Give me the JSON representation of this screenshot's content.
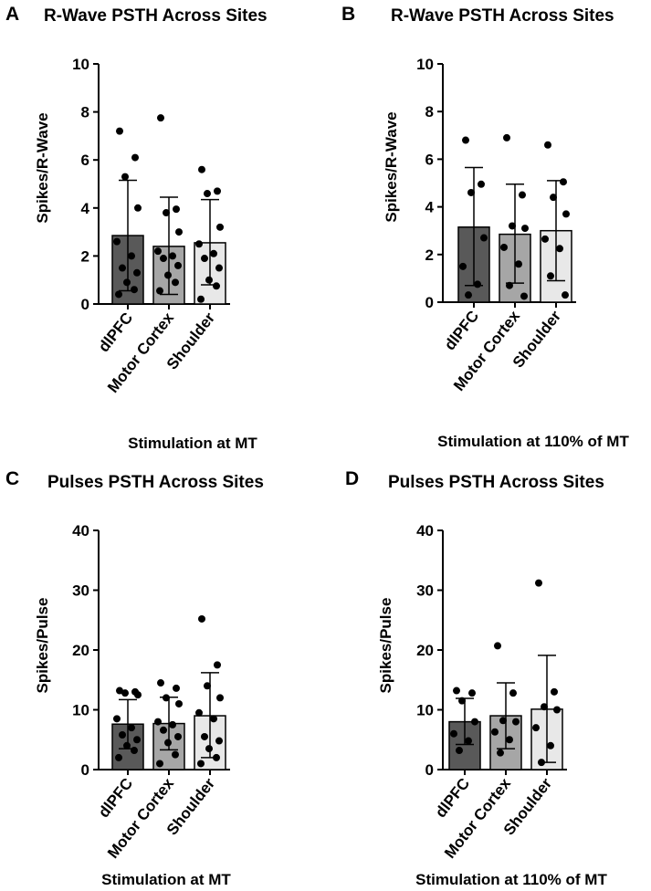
{
  "colors": {
    "site_fills": [
      "#595959",
      "#a6a6a6",
      "#e8e8e8"
    ],
    "ink": "#000000"
  },
  "chart_data": [
    {
      "panel": "A",
      "type": "bar",
      "title": "R-Wave PSTH Across Sites",
      "xlabel": "Stimulation at MT",
      "ylabel": "Spikes/R-Wave",
      "ylim": [
        0,
        10
      ],
      "yticks": [
        0,
        2,
        4,
        6,
        8,
        10
      ],
      "categories": [
        "dlPFC",
        "Motor Cortex",
        "Shoulder"
      ],
      "means": [
        2.85,
        2.4,
        2.55
      ],
      "sd_low": [
        0.55,
        0.4,
        0.8
      ],
      "sd_high": [
        5.15,
        4.45,
        4.35
      ],
      "points": [
        [
          7.2,
          6.1,
          5.3,
          4.0,
          2.6,
          2.0,
          1.5,
          1.3,
          0.9,
          0.6,
          0.4
        ],
        [
          7.75,
          3.95,
          3.8,
          3.0,
          2.2,
          2.0,
          1.9,
          1.6,
          1.2,
          0.9,
          0.55
        ],
        [
          5.6,
          4.7,
          4.6,
          3.2,
          2.5,
          2.1,
          1.9,
          1.5,
          1.0,
          0.75,
          0.2
        ]
      ]
    },
    {
      "panel": "B",
      "type": "bar",
      "title": "R-Wave PSTH Across Sites",
      "xlabel": "Stimulation at 110% of MT",
      "ylabel": "Spikes/R-Wave",
      "ylim": [
        0,
        10
      ],
      "yticks": [
        0,
        2,
        4,
        6,
        8,
        10
      ],
      "categories": [
        "dlPFC",
        "Motor Cortex",
        "Shoulder"
      ],
      "means": [
        3.15,
        2.85,
        3.0
      ],
      "sd_low": [
        0.7,
        0.8,
        0.9
      ],
      "sd_high": [
        5.65,
        4.95,
        5.1
      ],
      "points": [
        [
          6.8,
          4.95,
          4.6,
          2.7,
          1.5,
          0.75,
          0.3
        ],
        [
          6.9,
          4.5,
          3.2,
          3.1,
          2.3,
          1.6,
          0.7,
          0.25
        ],
        [
          6.6,
          5.05,
          4.4,
          3.7,
          2.65,
          2.25,
          1.1,
          0.3
        ]
      ]
    },
    {
      "panel": "C",
      "type": "bar",
      "title": "Pulses PSTH Across Sites",
      "xlabel": "Stimulation at MT",
      "ylabel": "Spikes/Pulse",
      "ylim": [
        0,
        40
      ],
      "yticks": [
        0,
        10,
        20,
        30,
        40
      ],
      "categories": [
        "dlPFC",
        "Motor Cortex",
        "Shoulder"
      ],
      "means": [
        7.6,
        7.7,
        9.0
      ],
      "sd_low": [
        3.5,
        3.3,
        2.0
      ],
      "sd_high": [
        11.7,
        12.1,
        16.2
      ],
      "points": [
        [
          13.2,
          13.0,
          12.8,
          12.5,
          8.5,
          7.0,
          5.8,
          5.0,
          4.0,
          3.2,
          2.0
        ],
        [
          14.5,
          13.6,
          12.0,
          11.0,
          8.0,
          7.5,
          6.6,
          5.5,
          4.5,
          2.5,
          1.0
        ],
        [
          25.2,
          17.5,
          14.0,
          12.0,
          9.5,
          8.5,
          5.5,
          4.8,
          3.5,
          2.0,
          1.0
        ]
      ]
    },
    {
      "panel": "D",
      "type": "bar",
      "title": "Pulses PSTH Across Sites",
      "xlabel": "Stimulation at 110% of MT",
      "ylabel": "Spikes/Pulse",
      "ylim": [
        0,
        40
      ],
      "yticks": [
        0,
        10,
        20,
        30,
        40
      ],
      "categories": [
        "dlPFC",
        "Motor Cortex",
        "Shoulder"
      ],
      "means": [
        8.0,
        9.0,
        10.1
      ],
      "sd_low": [
        4.2,
        3.5,
        1.2
      ],
      "sd_high": [
        11.9,
        14.5,
        19.1
      ],
      "points": [
        [
          13.2,
          12.8,
          11.5,
          8.0,
          6.0,
          4.8,
          3.2
        ],
        [
          20.7,
          12.8,
          8.2,
          8.0,
          6.3,
          5.0,
          2.8
        ],
        [
          31.2,
          13.0,
          10.5,
          10.0,
          7.0,
          4.0,
          1.2
        ]
      ]
    }
  ]
}
